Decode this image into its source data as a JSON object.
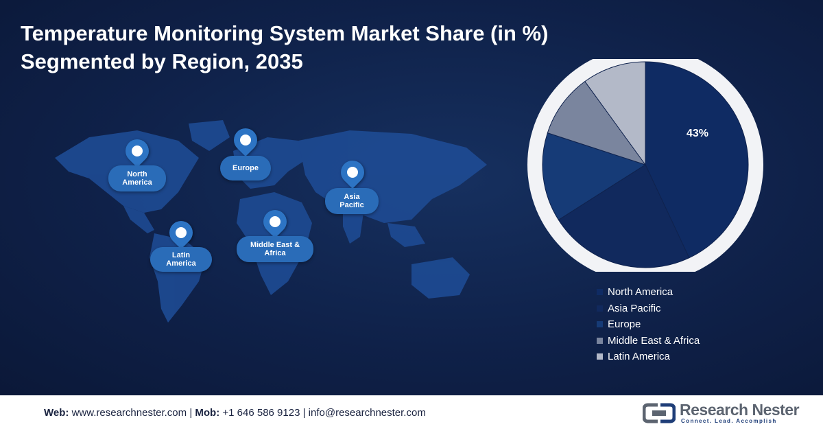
{
  "title": {
    "line1": "Temperature Monitoring System Market Share (in %)",
    "line2": "Segmented by Region, 2035"
  },
  "map": {
    "regions": [
      {
        "label": "North America"
      },
      {
        "label": "Europe"
      },
      {
        "label": "Asia Pacific"
      },
      {
        "label": "Latin America"
      },
      {
        "label": "Middle East & Africa"
      }
    ]
  },
  "chart_data": {
    "type": "pie",
    "categories": [
      "North America",
      "Asia Pacific",
      "Europe",
      "Middle East & Africa",
      "Latin America"
    ],
    "values": [
      43,
      23,
      14,
      10,
      10
    ],
    "data_labels": [
      "43%",
      "",
      "",
      "",
      ""
    ],
    "colors": [
      "#0f2b63",
      "#11295d",
      "#163b77",
      "#7a859e",
      "#b3b9c8"
    ],
    "legend_position": "bottom"
  },
  "footer": {
    "web_label": "Web:",
    "web_value": "www.researchnester.com",
    "mob_label": "Mob:",
    "mob_value": "+1 646 586 9123",
    "email": "info@researchnester.com",
    "sep": "|"
  },
  "logo": {
    "name": "Research Nester",
    "tagline": "Connect. Lead. Accomplish"
  }
}
